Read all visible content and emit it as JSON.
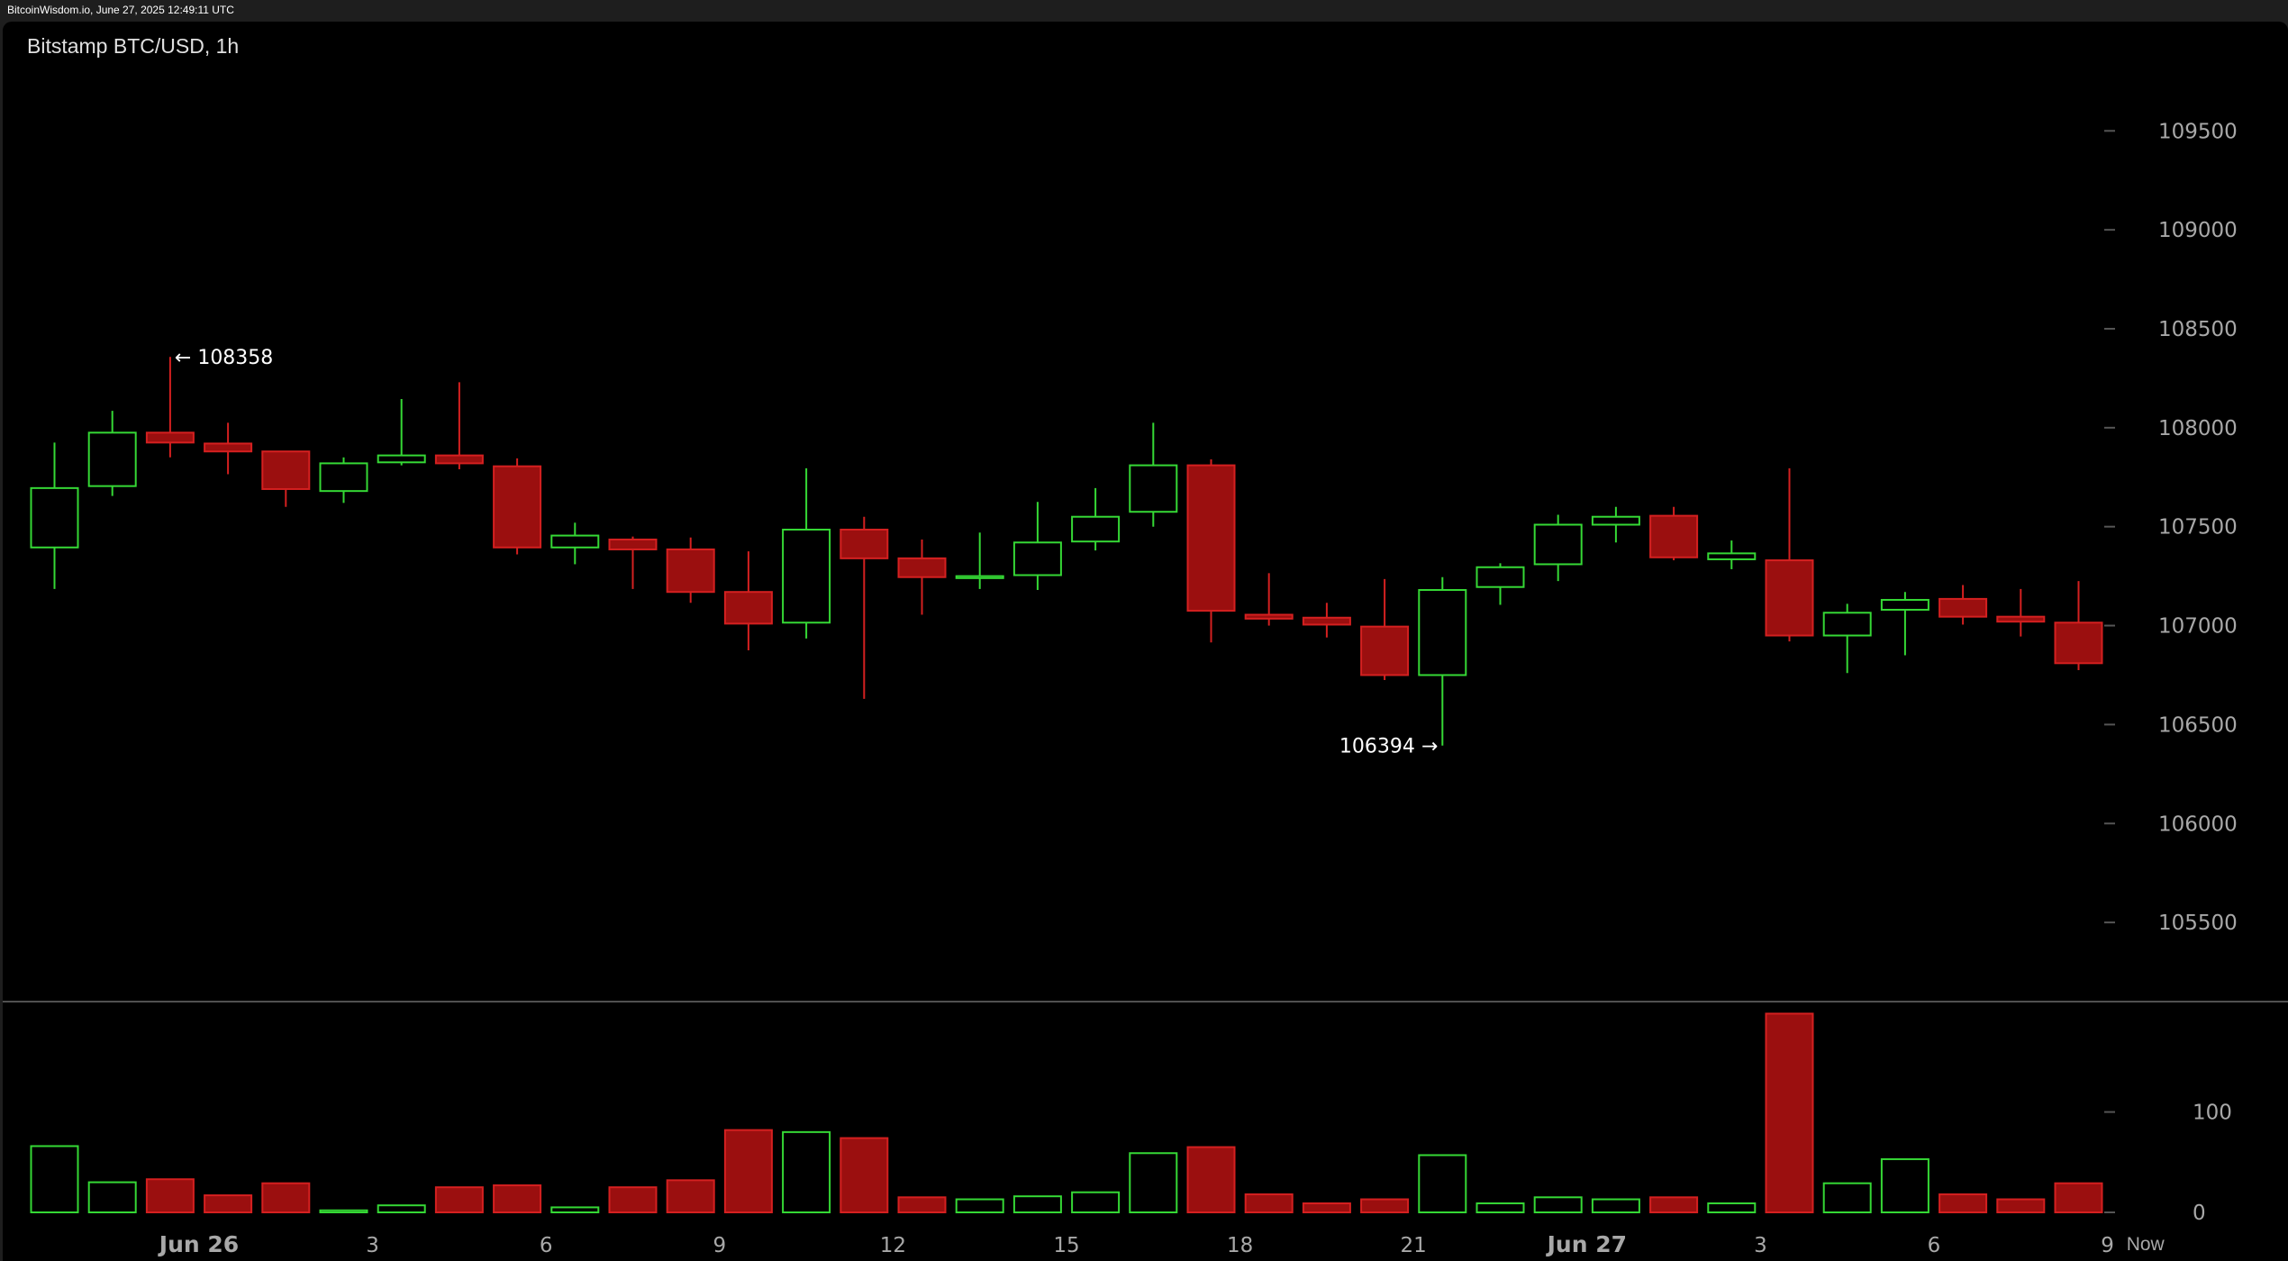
{
  "header": {
    "text": "BitcoinWisdom.io, June 27, 2025 12:49:11 UTC"
  },
  "chart_data": {
    "type": "candlestick",
    "title": "Bitstamp BTC/USD, 1h",
    "up_color": "#35d835",
    "down_color": "#9b0f0f",
    "down_border": "#d42020",
    "price_axis": {
      "ticks": [
        105500,
        106000,
        106500,
        107000,
        107500,
        108000,
        108500,
        109000,
        109500
      ],
      "range": [
        105100,
        109870
      ]
    },
    "volume_axis": {
      "ticks": [
        0,
        100
      ],
      "range": [
        0,
        210
      ]
    },
    "x_axis": {
      "tick_labels": [
        {
          "label": "Jun 26",
          "bar": 3,
          "day": true
        },
        {
          "label": "3",
          "bar": 6,
          "day": false
        },
        {
          "label": "6",
          "bar": 9,
          "day": false
        },
        {
          "label": "9",
          "bar": 12,
          "day": false
        },
        {
          "label": "12",
          "bar": 15,
          "day": false
        },
        {
          "label": "15",
          "bar": 18,
          "day": false
        },
        {
          "label": "18",
          "bar": 21,
          "day": false
        },
        {
          "label": "21",
          "bar": 24,
          "day": false
        },
        {
          "label": "Jun 27",
          "bar": 27,
          "day": true
        },
        {
          "label": "3",
          "bar": 30,
          "day": false
        },
        {
          "label": "6",
          "bar": 33,
          "day": false
        },
        {
          "label": "9",
          "bar": 36,
          "day": false
        }
      ],
      "now_label": "Now"
    },
    "annotations": [
      {
        "text": "← 108358",
        "bar": 2,
        "price": 108358,
        "side": "right"
      },
      {
        "text": "106394 →",
        "bar": 24,
        "price": 106394,
        "side": "left"
      }
    ],
    "candles": [
      {
        "o": 107395,
        "h": 107925,
        "l": 107185,
        "c": 107695,
        "v": 66
      },
      {
        "o": 107705,
        "h": 108085,
        "l": 107655,
        "c": 107975,
        "v": 30
      },
      {
        "o": 107975,
        "h": 108358,
        "l": 107850,
        "c": 107925,
        "v": 33
      },
      {
        "o": 107920,
        "h": 108025,
        "l": 107765,
        "c": 107880,
        "v": 17
      },
      {
        "o": 107880,
        "h": 107880,
        "l": 107600,
        "c": 107690,
        "v": 29
      },
      {
        "o": 107680,
        "h": 107850,
        "l": 107620,
        "c": 107820,
        "v": 2
      },
      {
        "o": 107825,
        "h": 108145,
        "l": 107810,
        "c": 107860,
        "v": 7
      },
      {
        "o": 107860,
        "h": 108230,
        "l": 107790,
        "c": 107820,
        "v": 25
      },
      {
        "o": 107805,
        "h": 107845,
        "l": 107360,
        "c": 107395,
        "v": 27
      },
      {
        "o": 107395,
        "h": 107520,
        "l": 107310,
        "c": 107455,
        "v": 5
      },
      {
        "o": 107435,
        "h": 107450,
        "l": 107185,
        "c": 107385,
        "v": 25
      },
      {
        "o": 107385,
        "h": 107445,
        "l": 107115,
        "c": 107170,
        "v": 32
      },
      {
        "o": 107170,
        "h": 107375,
        "l": 106875,
        "c": 107010,
        "v": 82
      },
      {
        "o": 107015,
        "h": 107795,
        "l": 106935,
        "c": 107485,
        "v": 80
      },
      {
        "o": 107485,
        "h": 107550,
        "l": 106630,
        "c": 107340,
        "v": 74
      },
      {
        "o": 107340,
        "h": 107435,
        "l": 107055,
        "c": 107245,
        "v": 15
      },
      {
        "o": 107240,
        "h": 107470,
        "l": 107185,
        "c": 107250,
        "v": 13
      },
      {
        "o": 107255,
        "h": 107625,
        "l": 107180,
        "c": 107420,
        "v": 16
      },
      {
        "o": 107425,
        "h": 107695,
        "l": 107380,
        "c": 107550,
        "v": 20
      },
      {
        "o": 107575,
        "h": 108025,
        "l": 107500,
        "c": 107810,
        "v": 59
      },
      {
        "o": 107810,
        "h": 107840,
        "l": 106915,
        "c": 107075,
        "v": 65
      },
      {
        "o": 107055,
        "h": 107265,
        "l": 107000,
        "c": 107035,
        "v": 18
      },
      {
        "o": 107040,
        "h": 107115,
        "l": 106940,
        "c": 107005,
        "v": 9
      },
      {
        "o": 106995,
        "h": 107235,
        "l": 106725,
        "c": 106750,
        "v": 13
      },
      {
        "o": 106750,
        "h": 107245,
        "l": 106394,
        "c": 107180,
        "v": 57
      },
      {
        "o": 107195,
        "h": 107315,
        "l": 107105,
        "c": 107295,
        "v": 9
      },
      {
        "o": 107310,
        "h": 107560,
        "l": 107225,
        "c": 107510,
        "v": 15
      },
      {
        "o": 107510,
        "h": 107600,
        "l": 107420,
        "c": 107550,
        "v": 13
      },
      {
        "o": 107555,
        "h": 107600,
        "l": 107330,
        "c": 107345,
        "v": 15
      },
      {
        "o": 107335,
        "h": 107430,
        "l": 107285,
        "c": 107365,
        "v": 9
      },
      {
        "o": 107330,
        "h": 107795,
        "l": 106920,
        "c": 106950,
        "v": 198
      },
      {
        "o": 106950,
        "h": 107110,
        "l": 106760,
        "c": 107065,
        "v": 29
      },
      {
        "o": 107080,
        "h": 107170,
        "l": 106850,
        "c": 107130,
        "v": 53
      },
      {
        "o": 107135,
        "h": 107205,
        "l": 107005,
        "c": 107045,
        "v": 18
      },
      {
        "o": 107045,
        "h": 107185,
        "l": 106945,
        "c": 107020,
        "v": 13
      },
      {
        "o": 107015,
        "h": 107225,
        "l": 106775,
        "c": 106810,
        "v": 29
      }
    ]
  }
}
